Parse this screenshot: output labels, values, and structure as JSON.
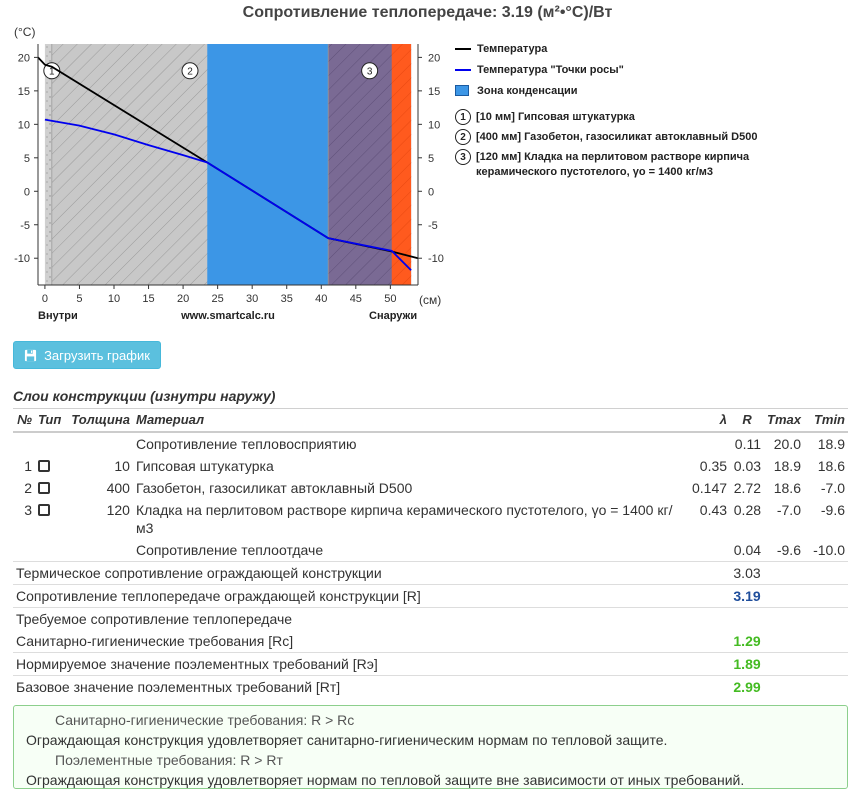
{
  "page_title": "Сопротивление теплопередаче: 3.19 (м²•°С)/Вт",
  "chart_data": {
    "type": "line",
    "y_unit": "(°С)",
    "x_unit": "(см)",
    "x_ticks": [
      0,
      5,
      10,
      15,
      20,
      25,
      30,
      35,
      40,
      45,
      50
    ],
    "y_ticks": [
      20,
      15,
      10,
      5,
      0,
      -5,
      -10
    ],
    "xlim": [
      -1,
      54
    ],
    "ylim": [
      -14,
      22
    ],
    "left_label": "Внутри",
    "center_label": "www.smartcalc.ru",
    "right_label": "Снаружи",
    "layers": [
      {
        "num": "1",
        "from": 0,
        "to": 1,
        "color": "#d0d0d0"
      },
      {
        "num": "2",
        "from": 1,
        "to": 41,
        "color": "#c8c8c8"
      },
      {
        "num": "3",
        "from": 41,
        "to": 53,
        "color": "#7a6a94"
      }
    ],
    "condensation_zone": [
      23.5,
      50.2
    ],
    "outer_zone": [
      50.2,
      53
    ],
    "series": [
      {
        "name": "Температура",
        "color": "#000000",
        "x": [
          -1,
          0,
          1,
          23.5,
          41,
          50.2,
          54
        ],
        "y": [
          20,
          18.9,
          18.6,
          4.3,
          -7.0,
          -9.0,
          -10.0
        ]
      },
      {
        "name": "Температура \"Точки росы\"",
        "color": "#0000ee",
        "x": [
          0,
          5,
          10,
          15,
          20,
          23.5,
          41,
          50.2,
          53
        ],
        "y": [
          10.7,
          9.8,
          8.5,
          6.9,
          5.4,
          4.3,
          -7.0,
          -8.9,
          -11.8
        ]
      }
    ],
    "legend_zone": "Зона конденсации"
  },
  "legend": {
    "temperature": "Температура",
    "dew_point": "Температура \"Точки росы\"",
    "zone": "Зона конденсации",
    "layer1_num": "1",
    "layer1": "[10 мм] Гипсовая штукатурка",
    "layer2_num": "2",
    "layer2": "[400 мм] Газобетон, газосиликат автоклавный D500",
    "layer3_num": "3",
    "layer3": "[120 мм] Кладка на перлитовом растворе кирпича керамического пустотелого, γo = 1400 кг/м3"
  },
  "download_button": "Загрузить график",
  "layers_title": "Слои конструкции (изнутри наружу)",
  "table": {
    "headers": {
      "no": "№",
      "type": "Тип",
      "thickness": "Толщина",
      "material": "Материал",
      "lambda": "λ",
      "r": "R",
      "tmax": "Tmax",
      "tmin": "Tmin"
    },
    "rows": [
      {
        "no": "",
        "thickness": "",
        "material": "Сопротивление тепловосприятию",
        "lambda": "",
        "r": "0.11",
        "tmax": "20.0",
        "tmin": "18.9"
      },
      {
        "no": "1",
        "thickness": "10",
        "material": "Гипсовая штукатурка",
        "lambda": "0.35",
        "r": "0.03",
        "tmax": "18.9",
        "tmin": "18.6"
      },
      {
        "no": "2",
        "thickness": "400",
        "material": "Газобетон, газосиликат автоклавный D500",
        "lambda": "0.147",
        "r": "2.72",
        "tmax": "18.6",
        "tmin": "-7.0"
      },
      {
        "no": "3",
        "thickness": "120",
        "material": "Кладка на перлитовом растворе кирпича керамического пустотелого, γo = 1400 кг/м3",
        "lambda": "0.43",
        "r": "0.28",
        "tmax": "-7.0",
        "tmin": "-9.6"
      },
      {
        "no": "",
        "thickness": "",
        "material": "Сопротивление теплоотдаче",
        "lambda": "",
        "r": "0.04",
        "tmax": "-9.6",
        "tmin": "-10.0"
      }
    ],
    "summary": [
      {
        "label": "Термическое сопротивление ограждающей конструкции",
        "value": "3.03"
      },
      {
        "label": "Сопротивление теплопередаче ограждающей конструкции [R]",
        "value": "3.19"
      },
      {
        "label": "Требуемое сопротивление теплопередаче",
        "value": ""
      },
      {
        "label": "Санитарно-гигиенические требования [Rc]",
        "value": "1.29"
      },
      {
        "label": "Нормируемое значение поэлементных требований [Rэ]",
        "value": "1.89"
      },
      {
        "label": "Базовое значение поэлементных требований [Rт]",
        "value": "2.99"
      }
    ]
  },
  "result": {
    "line1": "Санитарно-гигиенические требования: R > Rc",
    "line2": "Ограждающая конструкция удовлетворяет санитарно-гигиеническим нормам по тепловой защите.",
    "line3": "Поэлементные требования: R > Rт",
    "line4": "Ограждающая конструкция удовлетворяет нормам по тепловой защите вне зависимости от иных требований."
  },
  "colors": {
    "zone": "#3c96e6",
    "outer": "#ff5a1e",
    "layer3": "#7a6a94",
    "button": "#5bc0de",
    "green": "#44bb22",
    "blue_value": "#1f4e9c"
  }
}
